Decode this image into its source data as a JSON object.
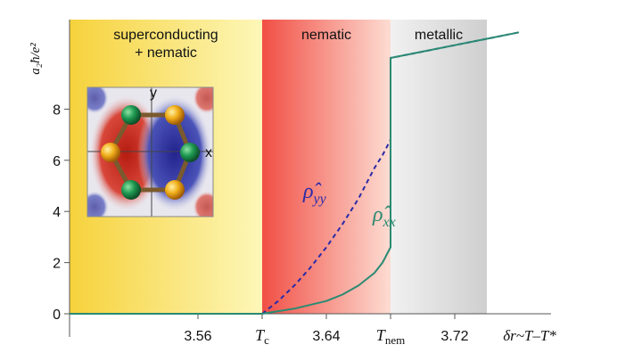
{
  "chart_data": {
    "type": "line",
    "title": "",
    "ylabel": "a₂ħ/e²",
    "ylim": [
      0,
      11.5
    ],
    "yticks": [
      0,
      2,
      4,
      6,
      8
    ],
    "xlim": [
      3.48,
      3.78
    ],
    "xticks": [
      {
        "value": 3.56,
        "label": "3.56"
      },
      {
        "value": 3.6,
        "label": "T",
        "sub": "c"
      },
      {
        "value": 3.64,
        "label": "3.64"
      },
      {
        "value": 3.68,
        "label": "T",
        "sub": "nem"
      },
      {
        "value": 3.72,
        "label": "3.72"
      }
    ],
    "x_axis_end_label": "δr~T–T*",
    "phases": [
      {
        "name": "superconducting\n+ nematic",
        "from": 3.48,
        "to": 3.6,
        "color": "#f7d84c"
      },
      {
        "name": "nematic",
        "from": 3.6,
        "to": 3.68,
        "color": "#f4695c"
      },
      {
        "name": "metallic",
        "from": 3.68,
        "to": 3.74,
        "color": "#d6d6d6"
      }
    ],
    "series": [
      {
        "name": "ρ̂yy",
        "label_base": "ρ̂",
        "label_sub": "yy",
        "color": "#2a2aa8",
        "style": "dashed",
        "x": [
          3.48,
          3.6,
          3.61,
          3.62,
          3.63,
          3.64,
          3.65,
          3.66,
          3.67,
          3.675,
          3.68,
          3.68,
          3.7,
          3.72,
          3.74,
          3.76
        ],
        "y": [
          0,
          0,
          0.5,
          1.1,
          1.8,
          2.6,
          3.5,
          4.5,
          5.7,
          6.2,
          6.8,
          10.0,
          10.25,
          10.5,
          10.75,
          11.0
        ]
      },
      {
        "name": "ρ̂xx",
        "label_base": "ρ̂",
        "label_sub": "xx",
        "color": "#2a8a72",
        "style": "solid",
        "x": [
          3.48,
          3.6,
          3.62,
          3.64,
          3.65,
          3.66,
          3.67,
          3.675,
          3.68,
          3.68,
          3.7,
          3.72,
          3.74,
          3.76
        ],
        "y": [
          0,
          0,
          0.2,
          0.5,
          0.75,
          1.1,
          1.6,
          2.0,
          2.6,
          10.0,
          10.25,
          10.5,
          10.75,
          11.0
        ]
      }
    ],
    "inset": {
      "axis_labels": {
        "x": "x",
        "y": "y"
      }
    }
  }
}
